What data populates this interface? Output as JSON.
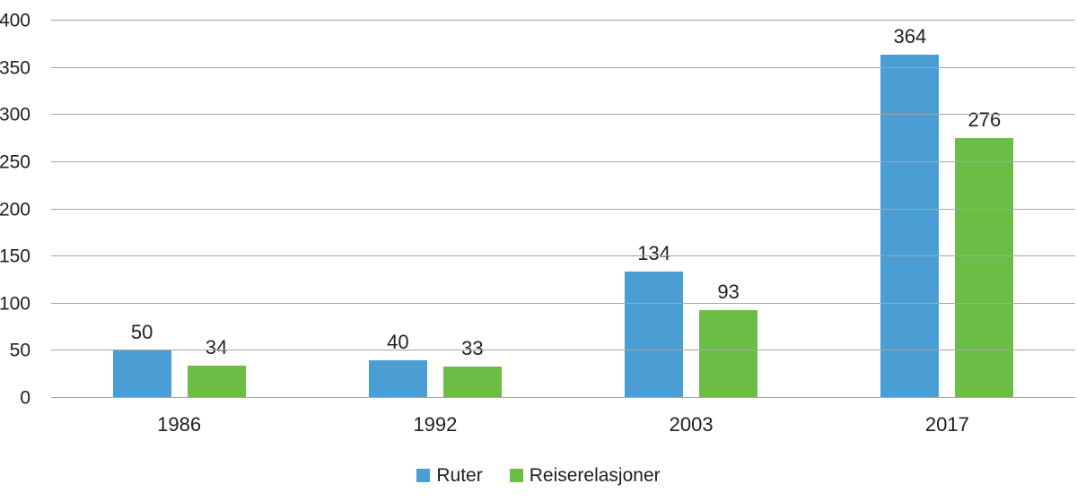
{
  "chart_data": {
    "type": "bar",
    "categories": [
      "1986",
      "1992",
      "2003",
      "2017"
    ],
    "series": [
      {
        "name": "Ruter",
        "color": "#4A9ED4",
        "values": [
          50,
          40,
          134,
          364
        ]
      },
      {
        "name": "Reiserelasjoner",
        "color": "#6BBE45",
        "values": [
          34,
          33,
          93,
          276
        ]
      }
    ],
    "title": "",
    "xlabel": "",
    "ylabel": "",
    "ylim": [
      0,
      400
    ],
    "yticks": [
      0,
      50,
      100,
      150,
      200,
      250,
      300,
      350,
      400
    ],
    "grid": "horizontal",
    "legend_position": "bottom-center"
  },
  "colors": {
    "background": "#ffffff",
    "gridline": "#a6a6a6",
    "text": "#221e1f",
    "series_blue": "#4A9ED4",
    "series_green": "#6BBE45"
  }
}
